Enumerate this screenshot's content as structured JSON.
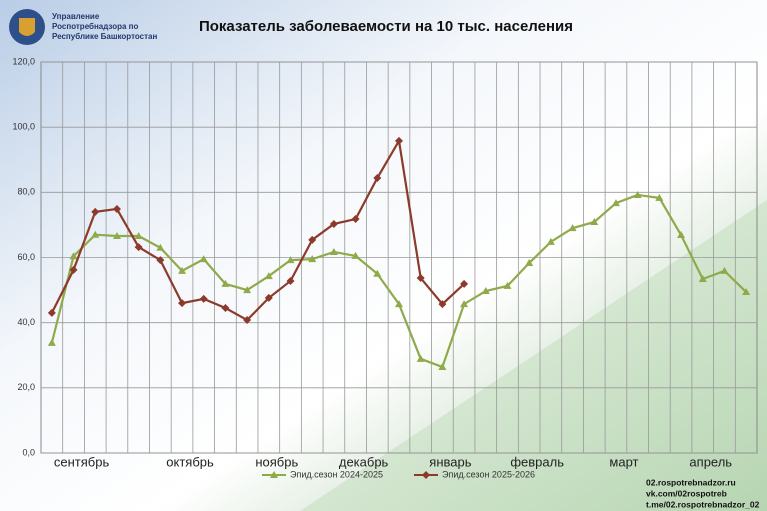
{
  "header": {
    "org": [
      "Управление",
      "Роспотребнадзора по",
      "Республике Башкортостан"
    ]
  },
  "footer": {
    "links": [
      "02.rospotrebnadzor.ru",
      "vk.com/02rospotreb",
      "t.me/02.rospotrebnadzor_02"
    ]
  },
  "chart_data": {
    "type": "line",
    "title": "Показатель заболеваемости на 10 тыс. населения",
    "categories": [
      null,
      "сентябрь",
      null,
      null,
      null,
      null,
      "октябрь",
      null,
      null,
      null,
      "ноябрь",
      null,
      null,
      null,
      "декабрь",
      null,
      null,
      null,
      "январь",
      null,
      null,
      null,
      "февраль",
      null,
      null,
      null,
      "март",
      null,
      null,
      null,
      "апрель",
      null,
      null
    ],
    "series": [
      {
        "name": "Эпид.сезон 2024-2025",
        "color": "#8faa4a",
        "marker": "triangle",
        "values": [
          33.8,
          60.4,
          67,
          66.6,
          66.6,
          63,
          55.9,
          59.5,
          51.9,
          50,
          54.3,
          59.2,
          59.5,
          61.7,
          60.5,
          55,
          45.7,
          28.9,
          26.4,
          45.7,
          49.7,
          51.3,
          58.3,
          64.8,
          69,
          70.9,
          76.7,
          79.2,
          78.3,
          66.9,
          53.4,
          55.9,
          49.4
        ]
      },
      {
        "name": "Эпид.сезон 2025-2026",
        "color": "#8b3a2b",
        "marker": "diamond",
        "values": [
          43,
          56.2,
          74,
          74.9,
          63.2,
          59.2,
          46,
          47.3,
          44.5,
          40.8,
          47.6,
          52.8,
          65.4,
          70.3,
          71.8,
          84.4,
          95.8,
          53.7,
          45.7,
          51.9,
          null,
          null,
          null,
          null,
          null,
          null,
          null,
          null,
          null,
          null,
          null,
          null,
          null
        ]
      }
    ],
    "ylim": [
      0,
      120
    ],
    "yticks": [
      {
        "value": 0,
        "label": "0,0"
      },
      {
        "value": 20,
        "label": "20,0"
      },
      {
        "value": 40,
        "label": "40,0"
      },
      {
        "value": 60,
        "label": "60,0"
      },
      {
        "value": 80,
        "label": "80,0"
      },
      {
        "value": 100,
        "label": "100,0"
      },
      {
        "value": 120,
        "label": "120,0"
      }
    ],
    "grid": true,
    "legend": "bottom"
  }
}
